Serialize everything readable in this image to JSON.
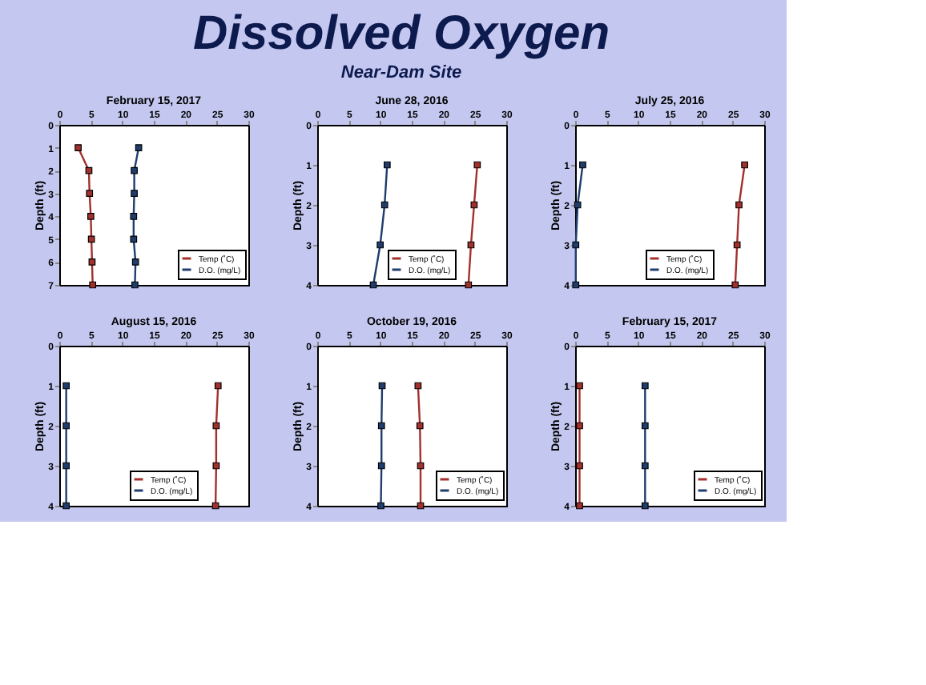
{
  "chart_data": [
    {
      "type": "other",
      "title": "Dissolved Oxygen",
      "subtitle": "Near-Dam Site"
    },
    {
      "type": "line",
      "title": "February 15, 2017",
      "ylabel": "Depth (ft)",
      "xlim": [
        0,
        30
      ],
      "xticks": [
        0,
        5,
        10,
        15,
        20,
        25,
        30
      ],
      "ylim": [
        7,
        0
      ],
      "yticks": [
        0,
        1,
        2,
        3,
        4,
        5,
        6,
        7
      ],
      "grid": false,
      "legend": "bottom right",
      "marker": "square",
      "line_style": "solid",
      "series": [
        {
          "name": "Temp (˚C)",
          "color": "#a3302c",
          "x": [
            3.0,
            4.7,
            4.8,
            5.0,
            5.1,
            5.2,
            5.3
          ],
          "values": [
            1,
            2,
            3,
            4,
            5,
            6,
            7
          ]
        },
        {
          "name": "D.O. (mg/L)",
          "color": "#1f3d6e",
          "x": [
            12.6,
            11.9,
            11.9,
            11.8,
            11.8,
            12.1,
            12.0
          ],
          "values": [
            1,
            2,
            3,
            4,
            5,
            6,
            7
          ]
        }
      ]
    },
    {
      "type": "line",
      "title": "June 28, 2016",
      "ylabel": "Depth (ft)",
      "xlim": [
        0,
        30
      ],
      "xticks": [
        0,
        5,
        10,
        15,
        20,
        25,
        30
      ],
      "ylim": [
        4,
        0
      ],
      "yticks": [
        0,
        1,
        2,
        3,
        4
      ],
      "grid": false,
      "legend": "bottom",
      "marker": "square",
      "line_style": "solid",
      "series": [
        {
          "name": "Temp (˚C)",
          "color": "#a3302c",
          "x": [
            25.4,
            24.9,
            24.4,
            24.0
          ],
          "values": [
            1,
            2,
            3,
            4
          ]
        },
        {
          "name": "D.O. (mg/L)",
          "color": "#1f3d6e",
          "x": [
            11.1,
            10.7,
            10.0,
            8.9
          ],
          "values": [
            1,
            2,
            3,
            4
          ]
        }
      ]
    },
    {
      "type": "line",
      "title": "July 25, 2016",
      "ylabel": "Depth (ft)",
      "xlim": [
        0,
        30
      ],
      "xticks": [
        0,
        5,
        10,
        15,
        20,
        25,
        30
      ],
      "ylim": [
        4,
        0
      ],
      "yticks": [
        0,
        1,
        2,
        3,
        4
      ],
      "grid": false,
      "legend": "bottom",
      "marker": "square",
      "line_style": "solid",
      "series": [
        {
          "name": "Temp (˚C)",
          "color": "#a3302c",
          "x": [
            26.9,
            26.0,
            25.7,
            25.4
          ],
          "values": [
            1,
            2,
            3,
            4
          ]
        },
        {
          "name": "D.O. (mg/L)",
          "color": "#1f3d6e",
          "x": [
            1.2,
            0.4,
            0.1,
            0.1
          ],
          "values": [
            1,
            2,
            3,
            4
          ]
        }
      ]
    },
    {
      "type": "line",
      "title": "August 15, 2016",
      "ylabel": "Depth (ft)",
      "xlim": [
        0,
        30
      ],
      "xticks": [
        0,
        5,
        10,
        15,
        20,
        25,
        30
      ],
      "ylim": [
        4,
        0
      ],
      "yticks": [
        0,
        1,
        2,
        3,
        4
      ],
      "grid": false,
      "legend": "bottom",
      "marker": "square",
      "line_style": "solid",
      "series": [
        {
          "name": "Temp (˚C)",
          "color": "#a3302c",
          "x": [
            25.2,
            24.9,
            24.9,
            24.8
          ],
          "values": [
            1,
            2,
            3,
            4
          ]
        },
        {
          "name": "D.O. (mg/L)",
          "color": "#1f3d6e",
          "x": [
            1.1,
            1.1,
            1.1,
            1.1
          ],
          "values": [
            1,
            2,
            3,
            4
          ]
        }
      ]
    },
    {
      "type": "line",
      "title": "October 19, 2016",
      "ylabel": "Depth (ft)",
      "xlim": [
        0,
        30
      ],
      "xticks": [
        0,
        5,
        10,
        15,
        20,
        25,
        30
      ],
      "ylim": [
        4,
        0
      ],
      "yticks": [
        0,
        1,
        2,
        3,
        4
      ],
      "grid": false,
      "legend": "bottom right",
      "marker": "square",
      "line_style": "solid",
      "series": [
        {
          "name": "Temp (˚C)",
          "color": "#a3302c",
          "x": [
            16.0,
            16.3,
            16.4,
            16.4
          ],
          "values": [
            1,
            2,
            3,
            4
          ]
        },
        {
          "name": "D.O. (mg/L)",
          "color": "#1f3d6e",
          "x": [
            10.3,
            10.2,
            10.2,
            10.1
          ],
          "values": [
            1,
            2,
            3,
            4
          ]
        }
      ]
    },
    {
      "type": "line",
      "title": "February 15, 2017",
      "ylabel": "Depth (ft)",
      "xlim": [
        0,
        30
      ],
      "xticks": [
        0,
        5,
        10,
        15,
        20,
        25,
        30
      ],
      "ylim": [
        4,
        0
      ],
      "yticks": [
        0,
        1,
        2,
        3,
        4
      ],
      "grid": false,
      "legend": "bottom right",
      "marker": "square",
      "line_style": "solid",
      "series": [
        {
          "name": "Temp (˚C)",
          "color": "#a3302c",
          "x": [
            0.7,
            0.7,
            0.7,
            0.7
          ],
          "values": [
            1,
            2,
            3,
            4
          ]
        },
        {
          "name": "D.O. (mg/L)",
          "color": "#1f3d6e",
          "x": [
            11.1,
            11.1,
            11.1,
            11.1
          ],
          "values": [
            1,
            2,
            3,
            4
          ]
        }
      ]
    }
  ]
}
